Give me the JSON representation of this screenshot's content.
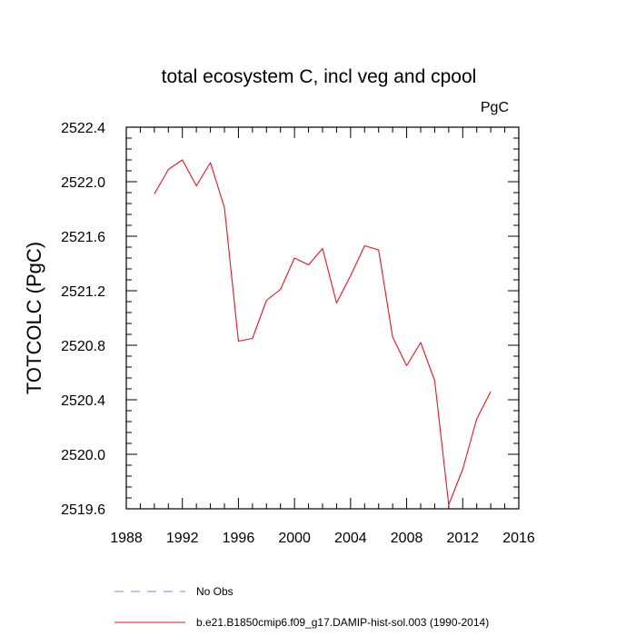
{
  "chart_data": {
    "type": "line",
    "title": "total ecosystem C, incl veg and cpool",
    "units_label": "PgC",
    "ylabel": "TOTCOLC  (PgC)",
    "xlabel": "",
    "xlim": [
      1988,
      2016
    ],
    "ylim": [
      2519.6,
      2522.4
    ],
    "x_ticks": [
      1988,
      1992,
      1996,
      2000,
      2004,
      2008,
      2012,
      2016
    ],
    "x_tick_labels": [
      "1988",
      "1992",
      "1996",
      "2000",
      "2004",
      "2008",
      "2012",
      "2016"
    ],
    "y_ticks": [
      2519.6,
      2520.0,
      2520.4,
      2520.8,
      2521.2,
      2521.6,
      2522.0,
      2522.4
    ],
    "y_tick_labels": [
      "2519.6",
      "2520.0",
      "2520.4",
      "2520.8",
      "2521.2",
      "2521.6",
      "2522.0",
      "2522.4"
    ],
    "grid": false,
    "legend_position": "bottom",
    "series": [
      {
        "name": "b.e21.B1850cmip6.f09_g17.DAMIP-hist-sol.003 (1990-2014)",
        "color": "#e8131f",
        "style": "solid",
        "x": [
          1990,
          1991,
          1992,
          1993,
          1994,
          1995,
          1996,
          1997,
          1998,
          1999,
          2000,
          2001,
          2002,
          2003,
          2004,
          2005,
          2006,
          2007,
          2008,
          2009,
          2010,
          2011,
          2012,
          2013,
          2014
        ],
        "y": [
          2521.91,
          2522.09,
          2522.16,
          2521.97,
          2522.14,
          2521.81,
          2520.83,
          2520.85,
          2521.13,
          2521.21,
          2521.44,
          2521.39,
          2521.51,
          2521.11,
          2521.31,
          2521.53,
          2521.5,
          2520.86,
          2520.65,
          2520.82,
          2520.54,
          2519.63,
          2519.89,
          2520.26,
          2520.46
        ]
      }
    ],
    "legend": [
      {
        "label": "No Obs",
        "color": "#8080ff",
        "style": "dashed"
      },
      {
        "label": "b.e21.B1850cmip6.f09_g17.DAMIP-hist-sol.003 (1990-2014)",
        "color": "#e8131f",
        "style": "solid"
      }
    ]
  }
}
